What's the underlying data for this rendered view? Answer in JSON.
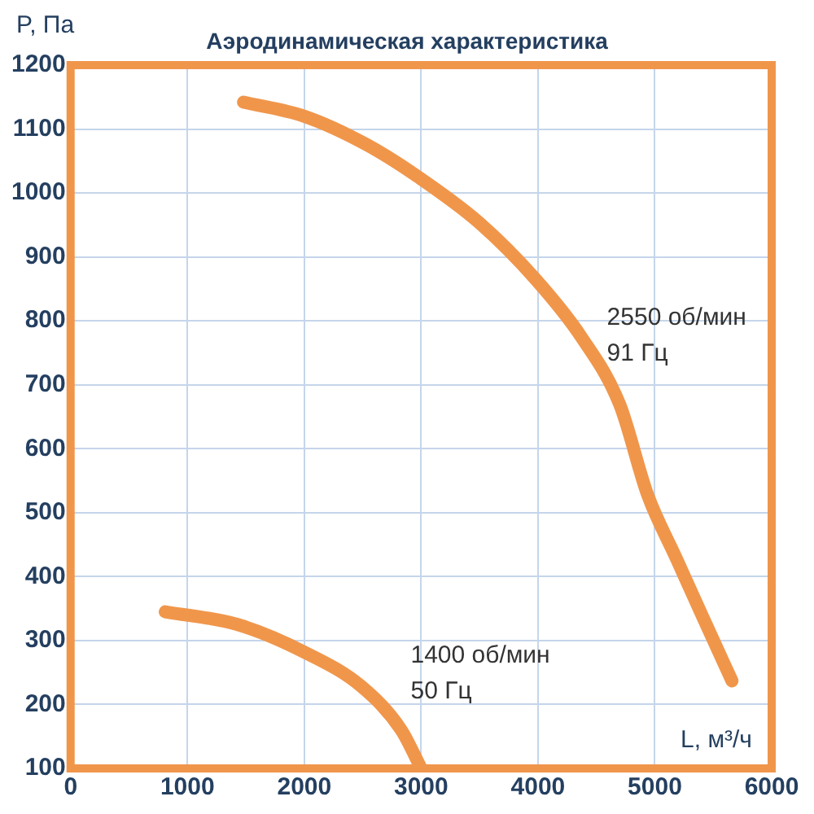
{
  "chart_data": {
    "type": "line",
    "title": "Аэродинамическая характеристика",
    "xlabel": "L, м³/ч",
    "ylabel": "P, Па",
    "series": [
      {
        "color": "#f0964b",
        "x": [
          1480,
          2000,
          2530,
          3000,
          3500,
          3980,
          4370,
          4700,
          4940,
          5180,
          5420,
          5660
        ],
        "values": [
          1142,
          1120,
          1076,
          1022,
          953,
          865,
          775,
          669,
          527,
          430,
          333,
          237
        ]
      },
      {
        "color": "#f0964b",
        "x": [
          810,
          1430,
          2010,
          2490,
          2830,
          3000
        ],
        "values": [
          345,
          325,
          281,
          228,
          160,
          100
        ]
      }
    ],
    "xlim": [
      0,
      6000
    ],
    "xticks": [
      0,
      1000,
      2000,
      3000,
      4000,
      5000,
      6000
    ],
    "ylim": [
      100,
      1200
    ],
    "yticks": [
      100,
      200,
      300,
      400,
      500,
      600,
      700,
      800,
      900,
      1000,
      1100,
      1200
    ],
    "grid": true,
    "legend": false,
    "marker": "none",
    "line_style": "solid",
    "annotations": [
      "2550 об/мин\n91 Гц",
      "1400 об/мин\n50 Гц"
    ]
  }
}
